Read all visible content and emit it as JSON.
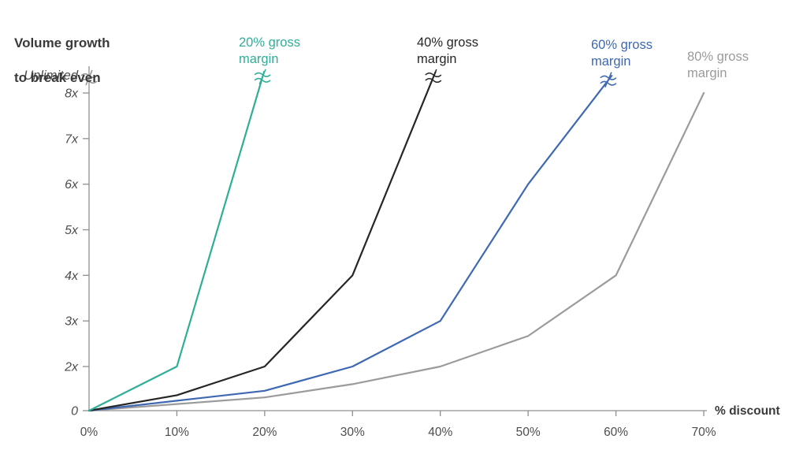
{
  "chart_data": {
    "type": "line",
    "title": "Volume growth to break even",
    "title_lines": [
      "Volume growth",
      "to break even"
    ],
    "xlabel": "% discount",
    "ylabel": "Volume growth to break even",
    "y_axis_top_label": "Unlimited",
    "grid": false,
    "legend_position": "above-each-line-end",
    "axis_color": "#8f8f8f",
    "tick_label_color": "#4d4d4d",
    "x_ticks": [
      {
        "pct": 0,
        "label": "0%"
      },
      {
        "pct": 10,
        "label": "10%"
      },
      {
        "pct": 20,
        "label": "20%"
      },
      {
        "pct": 30,
        "label": "30%"
      },
      {
        "pct": 40,
        "label": "40%"
      },
      {
        "pct": 50,
        "label": "50%"
      },
      {
        "pct": 60,
        "label": "60%"
      },
      {
        "pct": 70,
        "label": "70%"
      }
    ],
    "y_ticks": [
      {
        "multiple": 0,
        "label": "0"
      },
      {
        "multiple": 2,
        "label": "2x"
      },
      {
        "multiple": 3,
        "label": "3x"
      },
      {
        "multiple": 4,
        "label": "4x"
      },
      {
        "multiple": 5,
        "label": "5x"
      },
      {
        "multiple": 6,
        "label": "6x"
      },
      {
        "multiple": 7,
        "label": "7x"
      },
      {
        "multiple": 8,
        "label": "8x"
      }
    ],
    "series": [
      {
        "id": "gm80",
        "name": "80% gross margin",
        "label_lines": [
          "80% gross",
          "margin"
        ],
        "color": "#9b9b9b",
        "unlimited_at_pct": null,
        "ends_with_break": false,
        "points": [
          {
            "pct": 0,
            "multiple": 0
          },
          {
            "pct": 10,
            "multiple": 0.3
          },
          {
            "pct": 20,
            "multiple": 0.6
          },
          {
            "pct": 30,
            "multiple": 1.2
          },
          {
            "pct": 40,
            "multiple": 2
          },
          {
            "pct": 50,
            "multiple": 2.67
          },
          {
            "pct": 60,
            "multiple": 4
          },
          {
            "pct": 70,
            "multiple": 8
          }
        ]
      },
      {
        "id": "gm60",
        "name": "60% gross margin",
        "label_lines": [
          "60% gross",
          "margin"
        ],
        "color": "#3e68b2",
        "unlimited_at_pct": 60,
        "ends_with_break": true,
        "points": [
          {
            "pct": 0,
            "multiple": 0
          },
          {
            "pct": 10,
            "multiple": 0.45
          },
          {
            "pct": 20,
            "multiple": 0.9
          },
          {
            "pct": 30,
            "multiple": 2
          },
          {
            "pct": 40,
            "multiple": 3
          },
          {
            "pct": 50,
            "multiple": 6
          },
          {
            "pct": 58.8,
            "multiple": 8.2
          }
        ]
      },
      {
        "id": "gm40",
        "name": "40% gross margin",
        "label_lines": [
          "40% gross",
          "margin"
        ],
        "color": "#262626",
        "unlimited_at_pct": 40,
        "ends_with_break": true,
        "points": [
          {
            "pct": 0,
            "multiple": 0
          },
          {
            "pct": 10,
            "multiple": 0.7
          },
          {
            "pct": 20,
            "multiple": 2
          },
          {
            "pct": 30,
            "multiple": 4
          },
          {
            "pct": 39,
            "multiple": 8.25
          }
        ]
      },
      {
        "id": "gm20",
        "name": "20% gross margin",
        "label_lines": [
          "20% gross",
          "margin"
        ],
        "color": "#2fae96",
        "unlimited_at_pct": 20,
        "ends_with_break": true,
        "points": [
          {
            "pct": 0,
            "multiple": 0
          },
          {
            "pct": 10,
            "multiple": 2
          },
          {
            "pct": 19.6,
            "multiple": 8.25
          }
        ]
      }
    ]
  }
}
